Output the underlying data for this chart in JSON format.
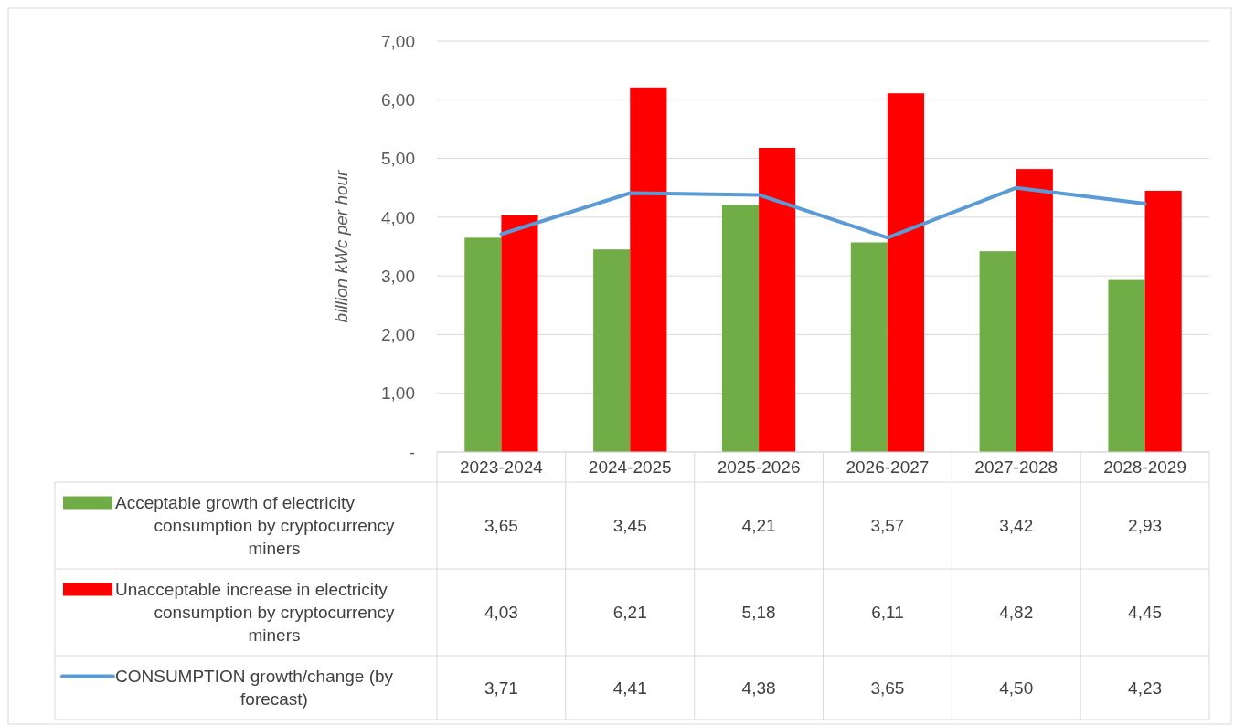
{
  "chart_data": {
    "type": "bar",
    "ylabel": "billion kWc per hour",
    "categories": [
      "2023-2024",
      "2024-2025",
      "2025-2026",
      "2026-2027",
      "2027-2028",
      "2028-2029"
    ],
    "series": [
      {
        "name": "Acceptable growth of electricity consumption by cryptocurrency miners",
        "color": "#70ad47",
        "values": [
          3.65,
          3.45,
          4.21,
          3.57,
          3.42,
          2.93
        ],
        "value_labels": [
          "3,65",
          "3,45",
          "4,21",
          "3,57",
          "3,42",
          "2,93"
        ]
      },
      {
        "name": "Unacceptable increase in electricity consumption by cryptocurrency miners",
        "color": "#ff0000",
        "values": [
          4.03,
          6.21,
          5.18,
          6.11,
          4.82,
          4.45
        ],
        "value_labels": [
          "4,03",
          "6,21",
          "5,18",
          "6,11",
          "4,82",
          "4,45"
        ]
      },
      {
        "name": "CONSUMPTION growth/change (by forecast)",
        "type": "line",
        "color": "#5b9bd5",
        "values": [
          3.71,
          4.41,
          4.38,
          3.65,
          4.5,
          4.23
        ],
        "value_labels": [
          "3,71",
          "4,41",
          "4,38",
          "3,65",
          "4,50",
          "4,23"
        ]
      }
    ],
    "ylim": [
      0,
      7
    ],
    "yticks": [
      {
        "value": 0,
        "label": "-"
      },
      {
        "value": 1,
        "label": "1,00"
      },
      {
        "value": 2,
        "label": "2,00"
      },
      {
        "value": 3,
        "label": "3,00"
      },
      {
        "value": 4,
        "label": "4,00"
      },
      {
        "value": 5,
        "label": "5,00"
      },
      {
        "value": 6,
        "label": "6,00"
      },
      {
        "value": 7,
        "label": "7,00"
      }
    ],
    "grid": "y",
    "legend": "bottom left"
  }
}
